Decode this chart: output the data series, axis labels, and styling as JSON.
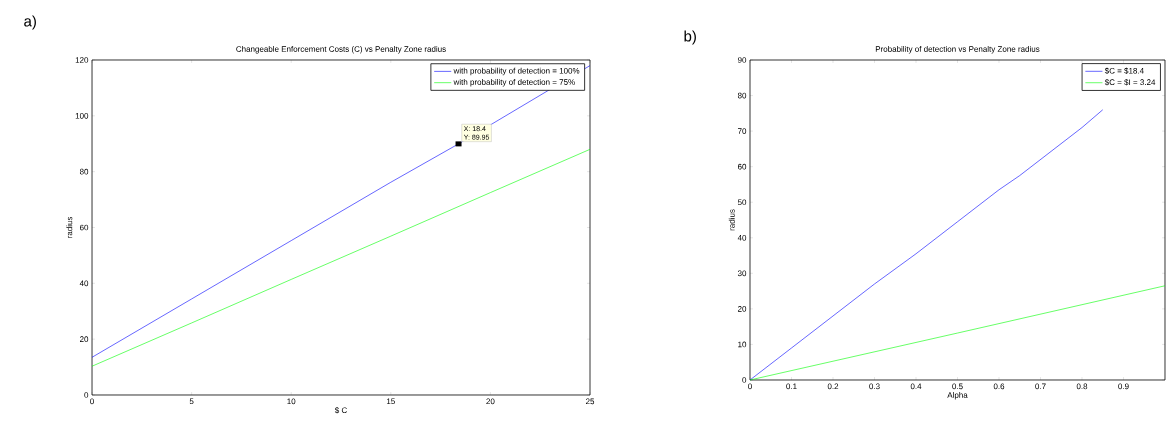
{
  "chart_data": [
    {
      "type": "line",
      "title": "Changeable Enforcement Costs (C) vs Penalty Zone radius",
      "xlabel": "$ C",
      "ylabel": "radius",
      "xlim": [
        0,
        25
      ],
      "ylim": [
        0,
        120
      ],
      "xticks": [
        0,
        5,
        10,
        15,
        20,
        25
      ],
      "yticks": [
        0,
        20,
        40,
        60,
        80,
        100,
        120
      ],
      "legend": "top right",
      "grid": false,
      "series": [
        {
          "name": "with probability of detection = 100%",
          "color": "#0000ff",
          "x": [
            0,
            5,
            10,
            15,
            18.4,
            25
          ],
          "values": [
            13.5,
            34.4,
            55.3,
            76.2,
            89.95,
            118
          ]
        },
        {
          "name": "with probability of detection = 75%",
          "color": "#00ff00",
          "x": [
            0,
            5,
            10,
            15,
            20,
            25
          ],
          "values": [
            10.3,
            25.8,
            41.4,
            56.9,
            72.5,
            88
          ]
        }
      ],
      "annotations": [
        "a)",
        {
          "text": "X: 18.4",
          "x": 18.4,
          "y": 89.95
        },
        {
          "text": "Y: 89.95",
          "x": 18.4,
          "y": 89.95
        }
      ]
    },
    {
      "type": "line",
      "title": "Probability of detection vs Penalty Zone radius",
      "xlabel": "Alpha",
      "ylabel": "radius",
      "xlim": [
        0,
        1
      ],
      "ylim": [
        0,
        90
      ],
      "xticks": [
        0,
        0.1,
        0.2,
        0.3,
        0.4,
        0.5,
        0.6,
        0.7,
        0.8,
        0.9
      ],
      "yticks": [
        0,
        10,
        20,
        30,
        40,
        50,
        60,
        70,
        80,
        90
      ],
      "legend": "top right",
      "grid": false,
      "series": [
        {
          "name": "$C = $18.4",
          "color": "#0000ff",
          "x": [
            0,
            0.1,
            0.2,
            0.3,
            0.4,
            0.5,
            0.6,
            0.65,
            0.8,
            0.85
          ],
          "values": [
            0,
            9,
            18,
            27,
            35.5,
            44.5,
            53.5,
            57.5,
            71,
            76
          ]
        },
        {
          "name": "$C = $I = 3.24",
          "color": "#00ff00",
          "x": [
            0,
            0.5,
            1
          ],
          "values": [
            0,
            13.2,
            26.5
          ]
        }
      ],
      "annotations": [
        "b)"
      ]
    }
  ]
}
